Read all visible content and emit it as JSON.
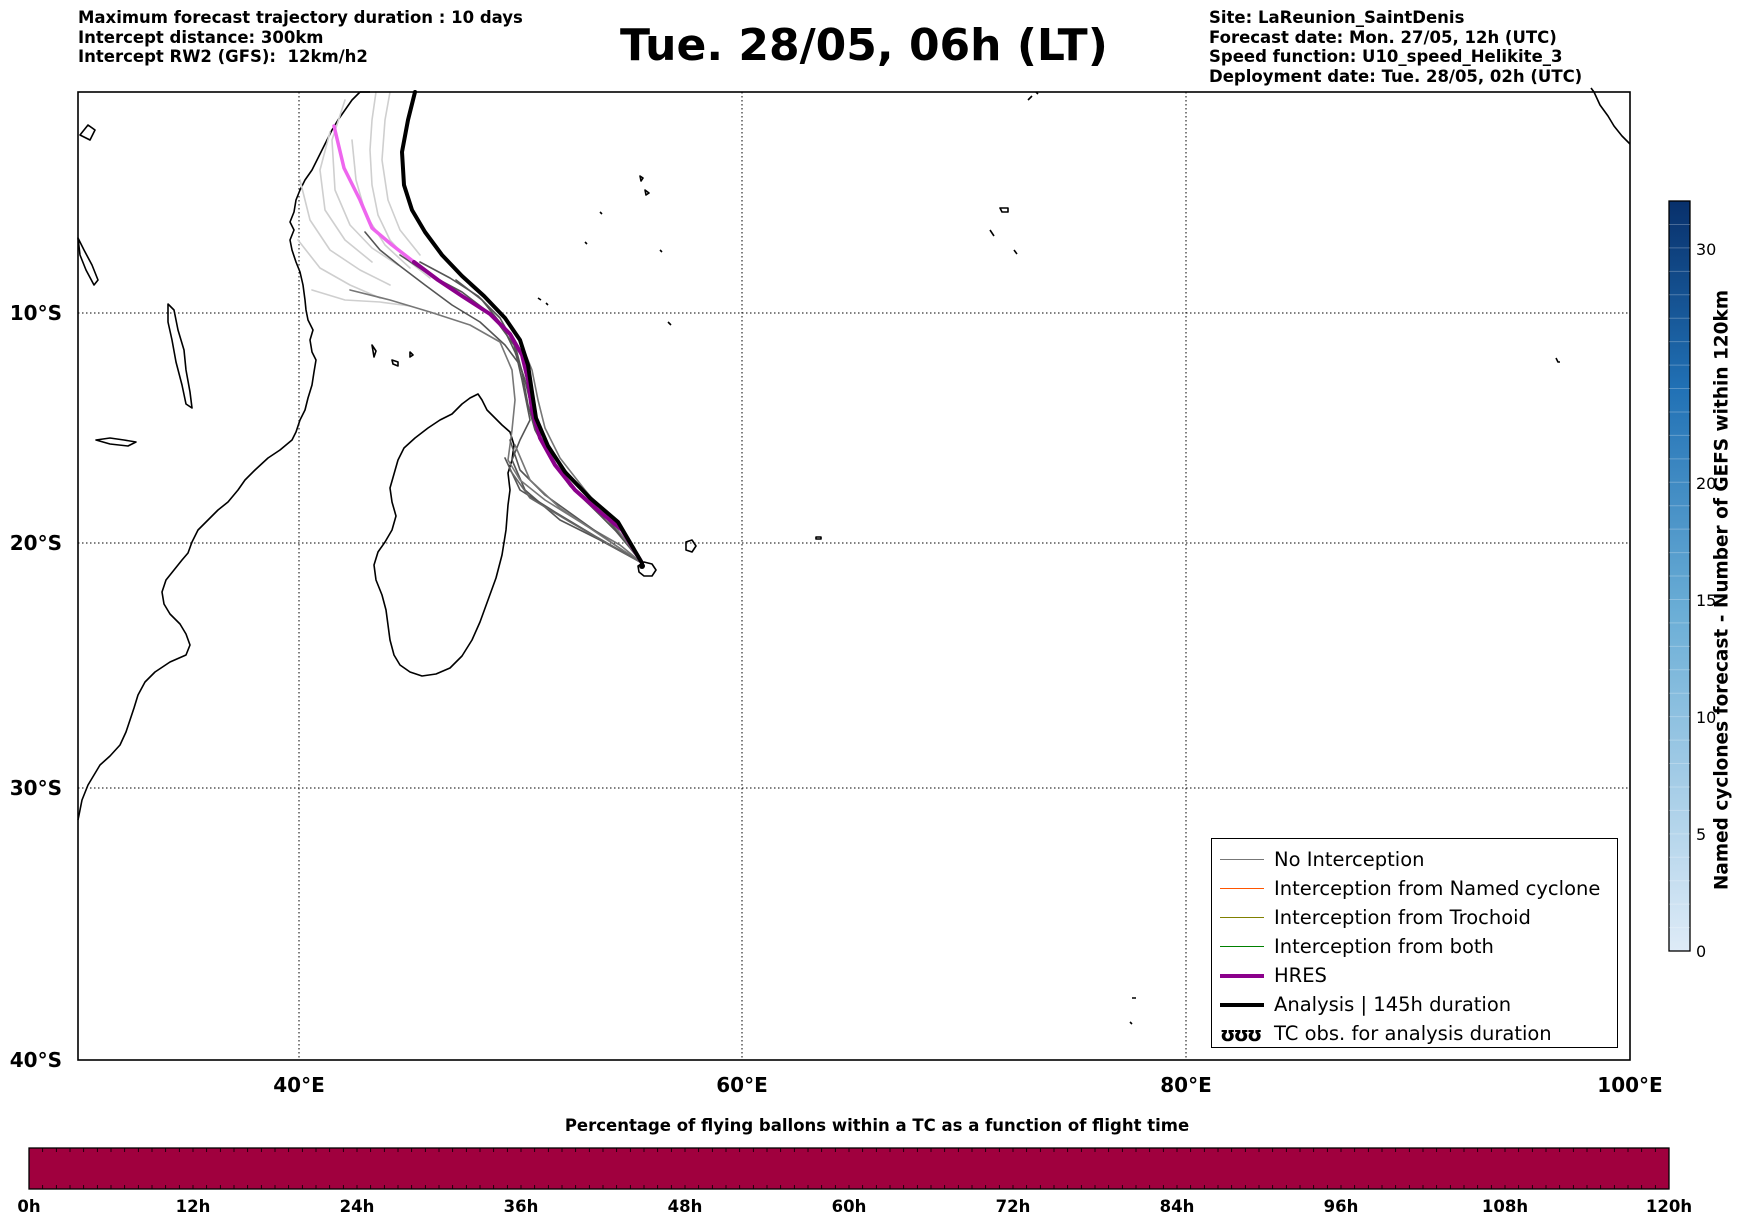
{
  "header": {
    "left_lines": [
      "Maximum forecast trajectory duration : 10 days",
      "Intercept distance: 300km",
      "Intercept RW2 (GFS):  12km/h2"
    ],
    "title": "Tue. 28/05, 06h (LT)",
    "right_lines": [
      "Site: LaReunion_SaintDenis",
      "Forecast date: Mon. 27/05, 12h (UTC)",
      "Speed function: U10_speed_Helikite_3",
      "Deployment date: Tue. 28/05, 02h (UTC)"
    ]
  },
  "map": {
    "lon_range": [
      30,
      100
    ],
    "lat_range": [
      -40,
      0
    ],
    "lon_ticks": [
      "40°E",
      "60°E",
      "80°E",
      "100°E"
    ],
    "lat_ticks": [
      "10°S",
      "20°S",
      "30°S",
      "40°S"
    ],
    "grid": "dotted",
    "colors": {
      "no_interception": "#777777",
      "named_cyclone": "#ff5500",
      "trochoid": "#808000",
      "both": "#008000",
      "hres": "#8b008b",
      "hres_early": "#ee66ee",
      "analysis": "#000000"
    },
    "launch_site": {
      "lon": 55.45,
      "lat": -20.9
    }
  },
  "colorbar_right": {
    "label": "Named cyclones forecast - Number of GEFS within 120km",
    "ticks": [
      "0",
      "5",
      "10",
      "15",
      "20",
      "30"
    ],
    "range": [
      0,
      32
    ],
    "color_low": "#deebf7",
    "color_high": "#08306b"
  },
  "legend": {
    "items": [
      {
        "label": "No Interception",
        "style": "thin",
        "color": "#777777"
      },
      {
        "label": "Interception from Named cyclone",
        "style": "thin",
        "color": "#ff5500"
      },
      {
        "label": "Interception from Trochoid",
        "style": "thin",
        "color": "#808000"
      },
      {
        "label": "Interception from both",
        "style": "thin",
        "color": "#008000"
      },
      {
        "label": "HRES",
        "style": "thick",
        "color": "#8b008b"
      },
      {
        "label": "Analysis | 145h duration",
        "style": "thick",
        "color": "#000000"
      },
      {
        "label": "TC obs. for analysis duration",
        "style": "glyph",
        "glyph": "ʊʊʊ"
      }
    ]
  },
  "bottom_bar": {
    "title": "Percentage of flying ballons within a TC as a function of flight time",
    "ticks": [
      "0h",
      "12h",
      "24h",
      "36h",
      "48h",
      "60h",
      "72h",
      "84h",
      "96h",
      "108h",
      "120h"
    ],
    "fill_color": "#a0003e"
  }
}
